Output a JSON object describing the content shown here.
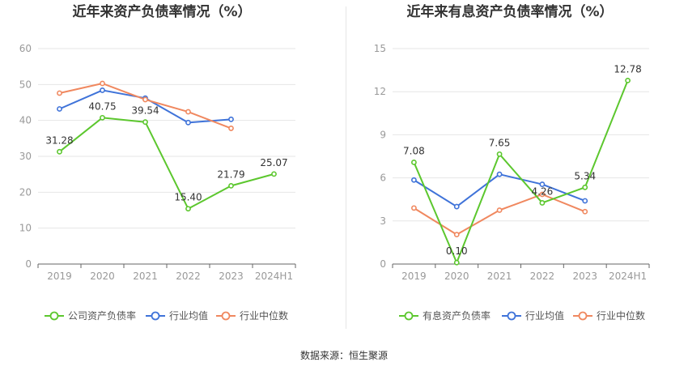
{
  "source_text": "数据来源：恒生聚源",
  "legend_items": [
    "行业均值",
    "行业中位数"
  ],
  "colors": {
    "company": "#5cc72e",
    "avg": "#3f73d9",
    "median": "#f0885f",
    "grid": "#e6e6e6",
    "axis": "#666666",
    "tick": "#999999"
  },
  "chart_data": [
    {
      "type": "line",
      "title": "近年来资产负债率情况（%）",
      "categories": [
        "2019",
        "2020",
        "2021",
        "2022",
        "2023",
        "2024H1"
      ],
      "ylim": [
        0,
        60
      ],
      "yticks": [
        0,
        10,
        20,
        30,
        40,
        50,
        60
      ],
      "grid": true,
      "legend_position": "bottom",
      "series": [
        {
          "name": "公司资产负债率",
          "values": [
            31.28,
            40.75,
            39.54,
            15.4,
            21.79,
            25.07
          ],
          "labels": [
            "31.28",
            "40.75",
            "39.54",
            "15.40",
            "21.79",
            "25.07"
          ]
        },
        {
          "name": "行业均值",
          "values": [
            43.2,
            48.4,
            46.2,
            39.4,
            40.3,
            null
          ]
        },
        {
          "name": "行业中位数",
          "values": [
            47.6,
            50.3,
            45.8,
            42.4,
            37.8,
            null
          ]
        }
      ]
    },
    {
      "type": "line",
      "title": "近年来有息资产负债率情况（%）",
      "categories": [
        "2019",
        "2020",
        "2021",
        "2022",
        "2023",
        "2024H1"
      ],
      "ylim": [
        0,
        15
      ],
      "yticks": [
        0,
        3,
        6,
        9,
        12,
        15
      ],
      "grid": true,
      "legend_position": "bottom",
      "series": [
        {
          "name": "有息资产负债率",
          "values": [
            7.08,
            0.1,
            7.65,
            4.26,
            5.34,
            12.78
          ],
          "labels": [
            "7.08",
            "0.10",
            "7.65",
            "4.26",
            "5.34",
            "12.78"
          ]
        },
        {
          "name": "行业均值",
          "values": [
            5.85,
            4.0,
            6.25,
            5.55,
            4.4,
            null
          ]
        },
        {
          "name": "行业中位数",
          "values": [
            3.9,
            2.05,
            3.75,
            4.85,
            3.65,
            null
          ]
        }
      ]
    }
  ]
}
